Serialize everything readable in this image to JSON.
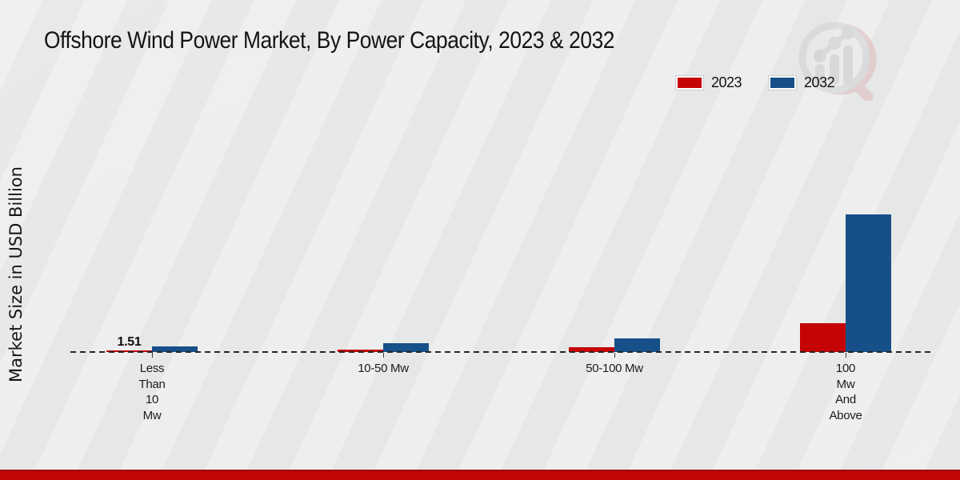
{
  "page": {
    "title": "Offshore Wind Power Market, By Power Capacity, 2023 & 2032",
    "y_axis_label": "Market Size in USD Billion"
  },
  "legend": {
    "items": [
      {
        "label": "2023",
        "color": "#c50408"
      },
      {
        "label": "2032",
        "color": "#175089"
      }
    ]
  },
  "chart_data": {
    "type": "bar",
    "title": "Offshore Wind Power Market, By Power Capacity, 2023 & 2032",
    "xlabel": "",
    "ylabel": "Market Size in USD Billion",
    "categories": [
      "Less Than 10 Mw",
      "10-50 Mw",
      "50-100 Mw",
      "100 Mw And Above"
    ],
    "category_label_lines": [
      [
        "Less",
        "Than",
        "10",
        "Mw"
      ],
      [
        "10-50 Mw"
      ],
      [
        "50-100 Mw"
      ],
      [
        "100",
        "Mw",
        "And",
        "Above"
      ]
    ],
    "series": [
      {
        "name": "2023",
        "color": "#c50408",
        "values": [
          1.51,
          2.5,
          5.9,
          36.4
        ]
      },
      {
        "name": "2032",
        "color": "#175089",
        "values": [
          6.9,
          11.0,
          17.1,
          172.0
        ]
      }
    ],
    "point_labels": [
      {
        "series_index": 0,
        "category_index": 0,
        "text": "1.51"
      }
    ],
    "ylim": [
      0,
      330
    ],
    "grid": false,
    "baseline_style": "dashed",
    "legend_position": "top-right"
  },
  "colors": {
    "series_2023": "#c50408",
    "series_2032": "#175089",
    "footer_bar": "#c10506",
    "background": "#e9eaea",
    "text": "#141414"
  }
}
